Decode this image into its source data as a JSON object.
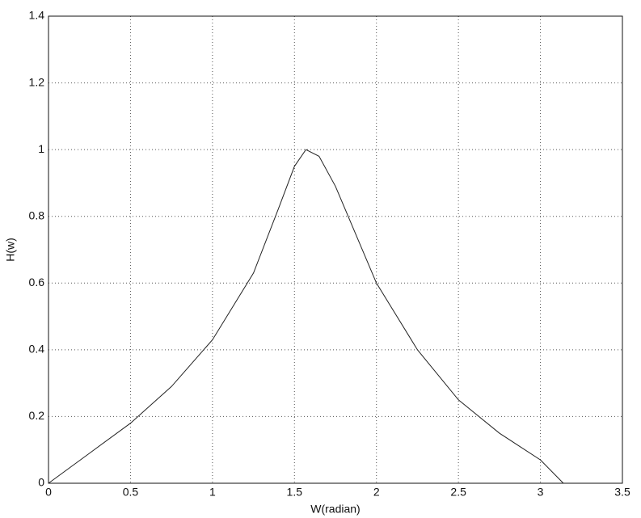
{
  "chart_data": {
    "type": "line",
    "x_label": "W(radian)",
    "y_label": "H(w)",
    "x": [
      0,
      0.25,
      0.5,
      0.75,
      1.0,
      1.25,
      1.4,
      1.5,
      1.57,
      1.65,
      1.75,
      2.0,
      2.25,
      2.5,
      2.75,
      3.0,
      3.14
    ],
    "values": [
      0,
      0.09,
      0.18,
      0.29,
      0.43,
      0.63,
      0.82,
      0.95,
      1.0,
      0.98,
      0.89,
      0.6,
      0.4,
      0.25,
      0.15,
      0.07,
      0
    ],
    "color": "#222222",
    "xlim": [
      0,
      3.5
    ],
    "xticks": [
      0,
      0.5,
      1,
      1.5,
      2,
      2.5,
      3,
      3.5
    ],
    "ylim": [
      0,
      1.4
    ],
    "yticks": [
      0,
      0.2,
      0.4,
      0.6,
      0.8,
      1,
      1.2,
      1.4
    ],
    "grid": true
  }
}
